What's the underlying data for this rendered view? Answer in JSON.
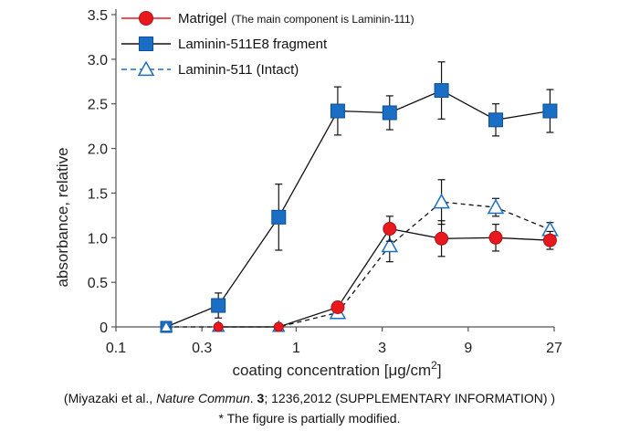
{
  "chart_data": {
    "type": "line",
    "xlabel": "coating concentration [μg/cm",
    "xlabel_sup": "2",
    "xlabel_end": "]",
    "ylabel": "absorbance, relative",
    "xscale": "log",
    "xlim": [
      0.1,
      27
    ],
    "ylim": [
      0,
      3.5
    ],
    "xticks": [
      0.1,
      0.3,
      1,
      3,
      9,
      27
    ],
    "xtick_labels": [
      "0.1",
      "0.3",
      "1",
      "3",
      "9",
      "27"
    ],
    "yticks": [
      0,
      0.5,
      1.0,
      1.5,
      2.0,
      2.5,
      3.0,
      3.5
    ],
    "ytick_labels": [
      "0",
      "0.5",
      "1.0",
      "1.5",
      "2.0",
      "2.5",
      "3.0",
      "3.5"
    ],
    "grid": false,
    "legend_position": "top",
    "series": [
      {
        "name": "Matrigel",
        "note": "(The main component is Laminin-111)",
        "marker": "circle",
        "line": "solid",
        "color": "#e8191d",
        "x": [
          0.37,
          0.8,
          1.7,
          3.3,
          6.4,
          12.8,
          25.6
        ],
        "y": [
          0,
          0,
          0.22,
          1.1,
          0.99,
          1.0,
          0.97
        ],
        "err": [
          0,
          0,
          0.03,
          0.14,
          0.2,
          0.15,
          0.1
        ]
      },
      {
        "name": "Laminin-511E8 fragment",
        "marker": "square",
        "line": "solid",
        "color": "#1a6fc4",
        "x": [
          0.19,
          0.37,
          0.8,
          1.7,
          3.3,
          6.4,
          12.8,
          25.6
        ],
        "y": [
          0,
          0.24,
          1.23,
          2.42,
          2.4,
          2.65,
          2.32,
          2.42
        ],
        "err": [
          0,
          0.14,
          0.37,
          0.27,
          0.19,
          0.32,
          0.18,
          0.24
        ]
      },
      {
        "name": "Laminin-511 (Intact)",
        "marker": "triangle",
        "line": "dashed",
        "color": "#1a6fc4",
        "x": [
          0.19,
          0.37,
          0.8,
          1.7,
          3.3,
          6.4,
          12.8,
          25.6
        ],
        "y": [
          0,
          0,
          0,
          0.16,
          0.91,
          1.4,
          1.34,
          1.09
        ],
        "err": [
          0,
          0,
          0,
          0.06,
          0.18,
          0.25,
          0.1,
          0.08
        ]
      }
    ]
  },
  "caption": {
    "line1_pre": "(Miyazaki et al., ",
    "line1_journal": "Nature Commun",
    "line1_dot": ". ",
    "line1_volume": "3",
    "line1_post": "; 1236,2012  (SUPPLEMENTARY INFORMATION) )",
    "line2": "* The figure is partially modified."
  }
}
